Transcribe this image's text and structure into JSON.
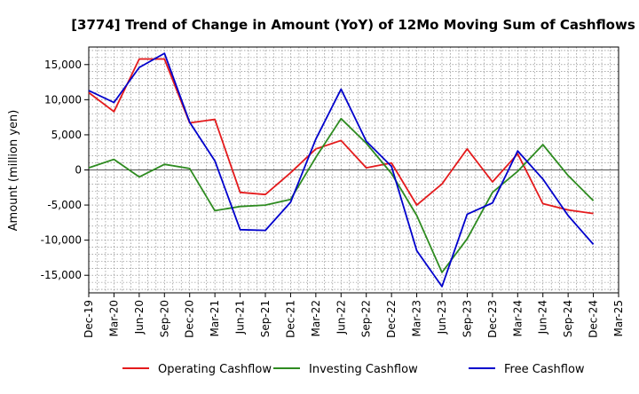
{
  "chart_data": {
    "type": "line",
    "title": "[3774]  Trend of Change in Amount (YoY) of 12Mo Moving Sum of Cashflows",
    "xlabel": "",
    "ylabel": "Amount (million yen)",
    "ylim": [
      -17500,
      17500
    ],
    "yticks": [
      15000,
      10000,
      5000,
      0,
      -5000,
      -10000,
      -15000
    ],
    "ytick_labels": [
      "15,000",
      "10,000",
      "5,000",
      "0",
      "-5,000",
      "-10,000",
      "-15,000"
    ],
    "categories": [
      "Dec-19",
      "Mar-20",
      "Jun-20",
      "Sep-20",
      "Dec-20",
      "Mar-21",
      "Jun-21",
      "Sep-21",
      "Dec-21",
      "Mar-22",
      "Jun-22",
      "Sep-22",
      "Dec-22",
      "Mar-23",
      "Jun-23",
      "Sep-23",
      "Dec-23",
      "Mar-24",
      "Jun-24",
      "Sep-24",
      "Dec-24",
      "Mar-25"
    ],
    "grid": true,
    "legend_position": "bottom",
    "series": [
      {
        "name": "Operating Cashflow",
        "color": "#e41a1c",
        "values": [
          11000,
          8300,
          15800,
          15800,
          6700,
          7200,
          -3200,
          -3500,
          -400,
          3000,
          4200,
          300,
          1000,
          -5000,
          -2000,
          3000,
          -1700,
          2300,
          -4800,
          -5700,
          -6200,
          null
        ]
      },
      {
        "name": "Investing Cashflow",
        "color": "#2e8b20",
        "values": [
          300,
          1500,
          -1000,
          800,
          200,
          -5800,
          -5200,
          -5000,
          -4200,
          1800,
          7300,
          3800,
          -500,
          -6500,
          -14600,
          -9800,
          -3200,
          -200,
          3600,
          -800,
          -4400,
          null
        ]
      },
      {
        "name": "Free Cashflow",
        "color": "#0000cc",
        "values": [
          11300,
          9600,
          14600,
          16600,
          6800,
          1300,
          -8500,
          -8600,
          -4600,
          4400,
          11500,
          4100,
          500,
          -11500,
          -16600,
          -6300,
          -4700,
          2700,
          -1300,
          -6500,
          -10600,
          null
        ]
      }
    ]
  }
}
